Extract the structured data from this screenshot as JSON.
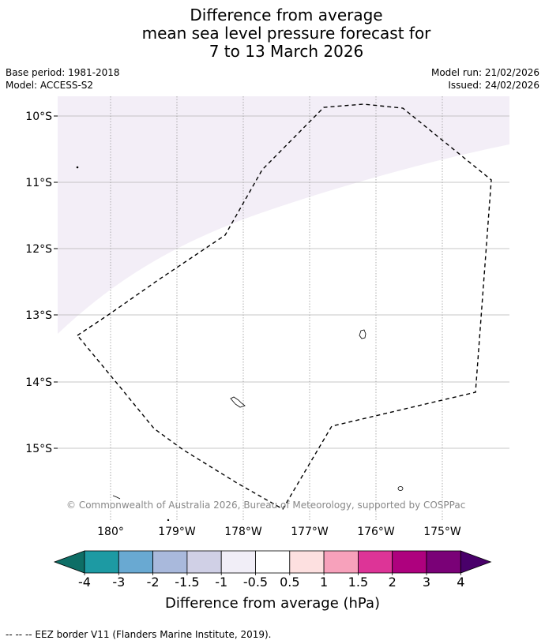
{
  "title": {
    "line1": "Difference from average",
    "line2": "mean sea level pressure forecast for",
    "line3": "7 to 13 March 2026"
  },
  "meta": {
    "base_period": "Base period: 1981-2018",
    "model": "Model: ACCESS-S2",
    "model_run": "Model run: 21/02/2026",
    "issued": "Issued: 24/02/2026"
  },
  "map": {
    "lat_labels": [
      "10°S",
      "11°S",
      "12°S",
      "13°S",
      "14°S",
      "15°S"
    ],
    "lon_labels": [
      "180°",
      "179°W",
      "178°W",
      "177°W",
      "176°W",
      "175°W"
    ],
    "shaded_color": "#f3eef7",
    "copyright": "© Commonwealth of Australia 2026, Bureau of Meteorology, supported by COSPPac"
  },
  "colorbar": {
    "ticks": [
      "-4",
      "-3",
      "-2",
      "-1.5",
      "-1",
      "-0.5",
      "0.5",
      "1",
      "1.5",
      "2",
      "3",
      "4"
    ],
    "colors": [
      "#0e6e66",
      "#1d9aa3",
      "#69a9d2",
      "#a9b9dc",
      "#d0d0e6",
      "#f1eef7",
      "#ffffff",
      "#fde0e0",
      "#f7a1bb",
      "#dd3497",
      "#ae017e",
      "#7a0177",
      "#49006a"
    ],
    "label": "Difference from average (hPa)"
  },
  "footer": {
    "legend": "--  --  -- EEZ border V11 (Flanders Marine Institute, 2019)."
  }
}
